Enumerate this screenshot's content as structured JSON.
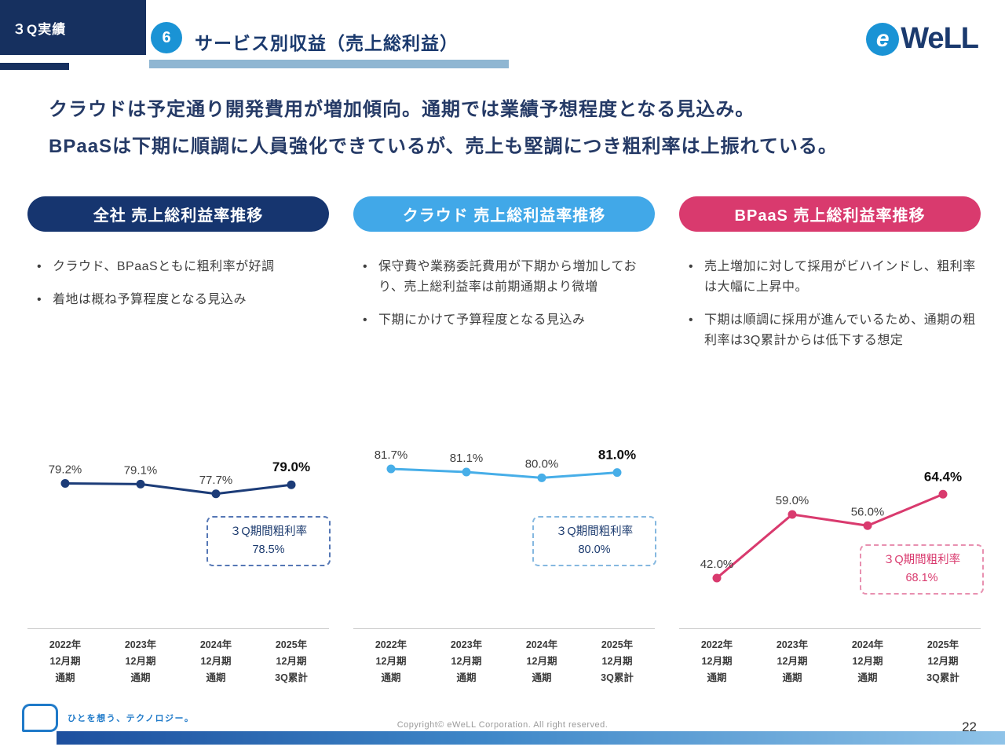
{
  "header": {
    "badge": "３Q実績",
    "section_number": "6",
    "title": "サービス別収益（売上総利益）",
    "logo_e": "e",
    "logo_text": "WeLL"
  },
  "lead": {
    "line1": "クラウドは予定通り開発費用が増加傾向。通期では業績予想程度となる見込み。",
    "line2": "BPaaSは下期に順調に人員強化できているが、売上も堅調につき粗利率は上振れている。"
  },
  "columns": [
    {
      "title": "全社 売上総利益率推移",
      "accent": "#16356f",
      "bullets": [
        "クラウド、BPaaSともに粗利率が好調",
        "着地は概ね予算程度となる見込み"
      ],
      "callout": {
        "label": "３Q期間粗利率",
        "value": "78.5%"
      }
    },
    {
      "title": "クラウド 売上総利益率推移",
      "accent": "#41a8e8",
      "bullets": [
        "保守費や業務委託費用が下期から増加しており、売上総利益率は前期通期より微増",
        "下期にかけて予算程度となる見込み"
      ],
      "callout": {
        "label": "３Q期間粗利率",
        "value": "80.0%"
      }
    },
    {
      "title": "BPaaS 売上総利益率推移",
      "accent": "#d93a6e",
      "bullets": [
        "売上増加に対して採用がビハインドし、粗利率は大幅に上昇中。",
        "下期は順調に採用が進んでいるため、通期の粗利率は3Q累計からは低下する想定"
      ],
      "callout": {
        "label": "３Q期間粗利率",
        "value": "68.1%"
      }
    }
  ],
  "chart_data": [
    {
      "type": "line",
      "title": "全社 売上総利益率推移",
      "categories": [
        [
          "2022年",
          "12月期",
          "通期"
        ],
        [
          "2023年",
          "12月期",
          "通期"
        ],
        [
          "2024年",
          "12月期",
          "通期"
        ],
        [
          "2025年",
          "12月期",
          "3Q累計"
        ]
      ],
      "values": [
        79.2,
        79.1,
        77.7,
        79.0
      ],
      "labels": [
        "79.2%",
        "79.1%",
        "77.7%",
        "79.0%"
      ],
      "unit": "%",
      "ylim": [
        68,
        86
      ],
      "color": "#1c3c78",
      "legend": "none",
      "grid": false,
      "annotation": "３Q期間粗利率 78.5%"
    },
    {
      "type": "line",
      "title": "クラウド 売上総利益率推移",
      "categories": [
        [
          "2022年",
          "12月期",
          "通期"
        ],
        [
          "2023年",
          "12月期",
          "通期"
        ],
        [
          "2024年",
          "12月期",
          "通期"
        ],
        [
          "2025年",
          "12月期",
          "3Q累計"
        ]
      ],
      "values": [
        81.7,
        81.1,
        80.0,
        81.0
      ],
      "labels": [
        "81.7%",
        "81.1%",
        "80.0%",
        "81.0%"
      ],
      "unit": "%",
      "ylim": [
        64,
        88
      ],
      "color": "#47aee8",
      "legend": "none",
      "grid": false,
      "annotation": "３Q期間粗利率 80.0%"
    },
    {
      "type": "line",
      "title": "BPaaS 売上総利益率推移",
      "categories": [
        [
          "2022年",
          "12月期",
          "通期"
        ],
        [
          "2023年",
          "12月期",
          "通期"
        ],
        [
          "2024年",
          "12月期",
          "通期"
        ],
        [
          "2025年",
          "12月期",
          "3Q累計"
        ]
      ],
      "values": [
        42.0,
        59.0,
        56.0,
        64.4
      ],
      "labels": [
        "42.0%",
        "59.0%",
        "56.0%",
        "64.4%"
      ],
      "unit": "%",
      "ylim": [
        38,
        80
      ],
      "color": "#d93a6e",
      "legend": "none",
      "grid": false,
      "annotation": "３Q期間粗利率 68.1%"
    }
  ],
  "footer": {
    "tagline": "ひとを想う、テクノロジー。",
    "copyright": "Copyright© eWeLL Corporation. All right reserved.",
    "page_number": "22"
  }
}
